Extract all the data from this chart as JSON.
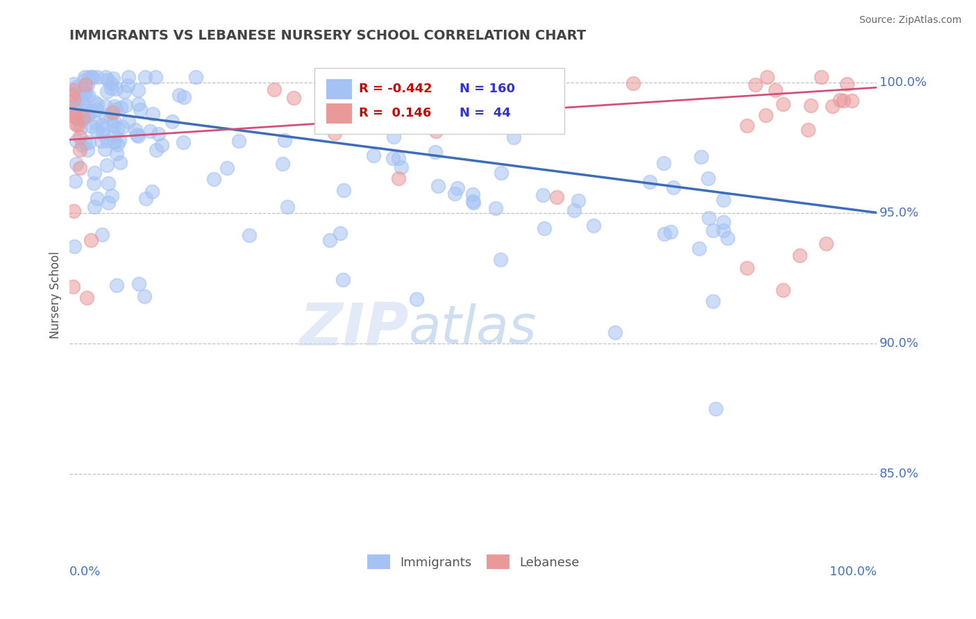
{
  "title": "IMMIGRANTS VS LEBANESE NURSERY SCHOOL CORRELATION CHART",
  "source": "Source: ZipAtlas.com",
  "ylabel": "Nursery School",
  "yticks": [
    0.85,
    0.9,
    0.95,
    1.0
  ],
  "ytick_labels": [
    "85.0%",
    "90.0%",
    "95.0%",
    "100.0%"
  ],
  "xlim": [
    0.0,
    1.0
  ],
  "ylim": [
    0.825,
    1.012
  ],
  "legend_blue_R": "-0.442",
  "legend_blue_N": "160",
  "legend_pink_R": "0.146",
  "legend_pink_N": "44",
  "blue_color": "#a4c2f4",
  "pink_color": "#ea9999",
  "blue_line_color": "#3d6eb5",
  "pink_line_color": "#d45079",
  "watermark_zip": "ZIP",
  "watermark_atlas": "atlas",
  "title_color": "#434343",
  "axis_label_color": "#4472c4",
  "grid_color": "#c0c0c0",
  "blue_line_y0": 0.99,
  "blue_line_y1": 0.95,
  "pink_line_y0": 0.978,
  "pink_line_y1": 0.998
}
